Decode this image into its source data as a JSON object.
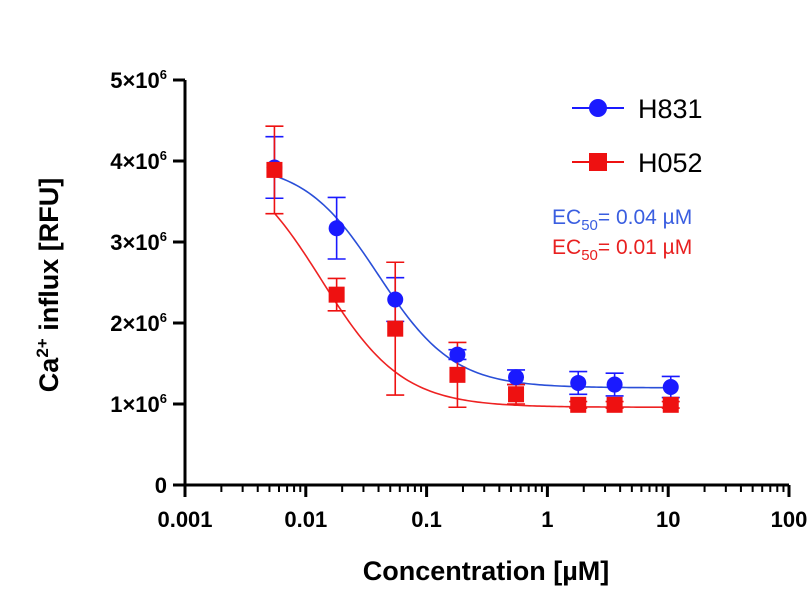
{
  "chart_data": {
    "type": "scatter",
    "x_scale": "log",
    "xlabel": "Concentration [µM]",
    "ylabel_parts": [
      "Ca",
      "2+",
      " influx [RFU]"
    ],
    "xlim": [
      0.001,
      100
    ],
    "ylim": [
      0,
      5000000
    ],
    "x_ticks": [
      0.001,
      0.01,
      0.1,
      1,
      10,
      100
    ],
    "x_tick_labels": [
      "0.001",
      "0.01",
      "0.1",
      "1",
      "10",
      "100"
    ],
    "y_ticks": [
      0,
      1000000,
      2000000,
      3000000,
      4000000,
      5000000
    ],
    "y_tick_labels": [
      {
        "base": "0",
        "exp": ""
      },
      {
        "base": "1×10",
        "exp": "6"
      },
      {
        "base": "2×10",
        "exp": "6"
      },
      {
        "base": "3×10",
        "exp": "6"
      },
      {
        "base": "4×10",
        "exp": "6"
      },
      {
        "base": "5×10",
        "exp": "6"
      }
    ],
    "legend_position": "top-right",
    "series": [
      {
        "name": "H831",
        "marker": "circle",
        "color": "#1a1aff",
        "curve_color": "#2a4fd8",
        "x": [
          0.0055,
          0.018,
          0.055,
          0.18,
          0.55,
          1.8,
          3.6,
          10.5
        ],
        "y": [
          3920000,
          3170000,
          2290000,
          1610000,
          1330000,
          1260000,
          1240000,
          1210000
        ],
        "error": [
          380000,
          380000,
          270000,
          60000,
          90000,
          140000,
          140000,
          130000
        ],
        "fit": {
          "top": 3980000,
          "bottom": 1200000,
          "ec50": 0.04,
          "hill": 1.4
        }
      },
      {
        "name": "H052",
        "marker": "square",
        "color": "#ee1111",
        "curve_color": "#ee2222",
        "x": [
          0.0055,
          0.018,
          0.055,
          0.18,
          0.55,
          1.8,
          3.6,
          10.5
        ],
        "y": [
          3890000,
          2350000,
          1930000,
          1360000,
          1120000,
          990000,
          990000,
          990000
        ],
        "error": [
          540000,
          200000,
          820000,
          400000,
          120000,
          40000,
          40000,
          40000
        ],
        "fit": {
          "top": 4100000,
          "bottom": 960000,
          "ec50": 0.0135,
          "hill": 1.3
        }
      }
    ],
    "annotations": [
      {
        "prefix": "EC",
        "sub": "50",
        "text": "= 0.04  µM",
        "color": "#3a5ee0"
      },
      {
        "prefix": "EC",
        "sub": "50",
        "text": "= 0.01  µM",
        "color": "#e82020"
      }
    ]
  }
}
